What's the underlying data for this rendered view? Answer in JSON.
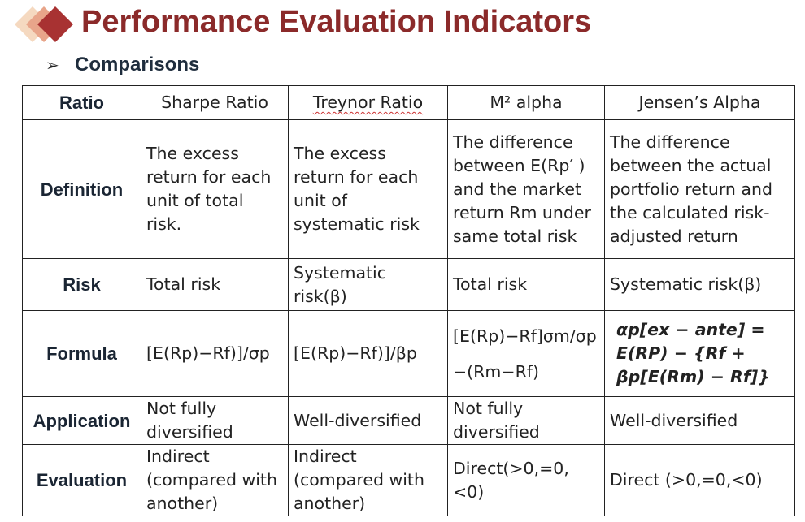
{
  "header": {
    "title": "Performance Evaluation Indicators",
    "colors": {
      "title": "#8b2a2a",
      "diamond_dark": "#a83232",
      "diamond_light": "#f2c9a8"
    }
  },
  "bullet": {
    "icon": "arrow-bullet-icon",
    "symbol": "➢",
    "text": "Comparisons"
  },
  "table": {
    "columns": [
      "Ratio",
      "Sharpe Ratio",
      "Treynor Ratio",
      "M² alpha",
      "Jensen’s Alpha"
    ],
    "rows": [
      {
        "label": "Definition",
        "cells": [
          "The excess return for each unit of total risk.",
          "The excess return for each unit of systematic risk",
          "The difference between E(Rp′ ) and the market return Rm under same total risk",
          "The difference between the actual portfolio return and the calculated risk-adjusted return"
        ]
      },
      {
        "label": "Risk",
        "cells": [
          "Total risk",
          "Systematic risk(β)",
          "Total risk",
          "Systematic risk(β)"
        ]
      },
      {
        "label": "Formula",
        "cells": [
          "[E(Rp)−Rf)]/σp",
          "[E(Rp)−Rf)]/βp",
          "[E(Rp)−Rf]σm/σp −(Rm−Rf)",
          "αp[ex − ante] = E(RP) − {Rf + βp[E(Rm) − Rf]}"
        ]
      },
      {
        "label": "Application",
        "cells": [
          "Not fully diversified",
          "Well-diversified",
          "Not fully diversified",
          "Well-diversified"
        ]
      },
      {
        "label": "Evaluation",
        "cells": [
          "Indirect (compared with another)",
          "Indirect (compared with another)",
          "Direct(>0,=0,<0)",
          "Direct (>0,=0,<0)"
        ]
      }
    ]
  }
}
